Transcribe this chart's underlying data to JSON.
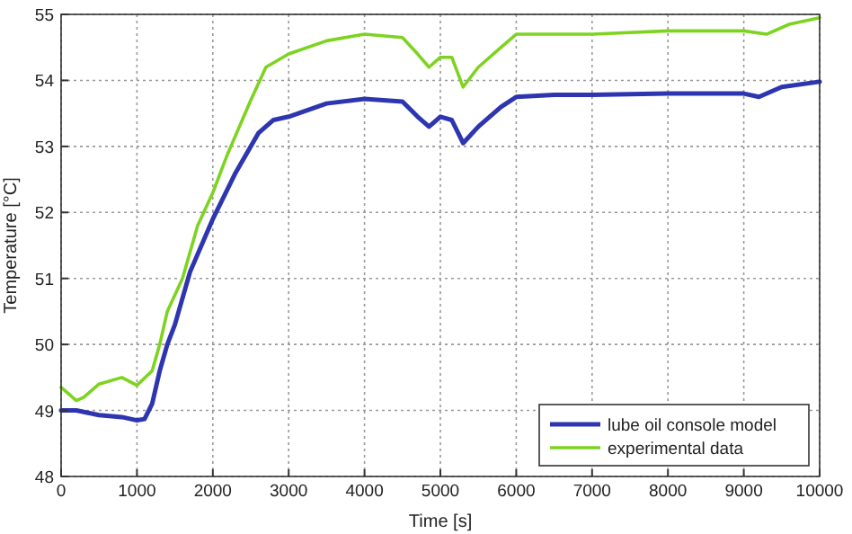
{
  "chart_data": {
    "type": "line",
    "xlabel": "Time [s]",
    "ylabel": "Temperature [°C]",
    "xlim": [
      0,
      10000
    ],
    "xticks": [
      0,
      1000,
      2000,
      3000,
      4000,
      5000,
      6000,
      7000,
      8000,
      9000,
      10000
    ],
    "ylim": [
      48,
      55
    ],
    "yticks": [
      48,
      49,
      50,
      51,
      52,
      53,
      54,
      55
    ],
    "grid": true,
    "legend": "bottom right",
    "marker": "none",
    "line_style": "solid",
    "series": [
      {
        "name": "lube oil console model",
        "color": "#2e35b0",
        "x": [
          0,
          200,
          500,
          800,
          1000,
          1100,
          1200,
          1300,
          1400,
          1500,
          1700,
          2000,
          2300,
          2600,
          2800,
          3000,
          3500,
          4000,
          4500,
          4700,
          4850,
          5000,
          5150,
          5300,
          5500,
          5800,
          6000,
          6500,
          7000,
          8000,
          9000,
          9200,
          9500,
          10000
        ],
        "values": [
          49.0,
          49.0,
          48.93,
          48.9,
          48.85,
          48.87,
          49.1,
          49.6,
          50.0,
          50.3,
          51.1,
          51.9,
          52.6,
          53.2,
          53.4,
          53.45,
          53.65,
          53.72,
          53.68,
          53.45,
          53.3,
          53.45,
          53.4,
          53.05,
          53.3,
          53.6,
          53.75,
          53.78,
          53.78,
          53.8,
          53.8,
          53.75,
          53.9,
          53.98
        ]
      },
      {
        "name": "experimental data",
        "color": "#7ed321",
        "x": [
          0,
          100,
          200,
          300,
          500,
          800,
          1000,
          1200,
          1300,
          1400,
          1600,
          1800,
          2000,
          2200,
          2500,
          2700,
          3000,
          3500,
          4000,
          4500,
          4700,
          4850,
          5000,
          5150,
          5300,
          5500,
          5800,
          6000,
          6500,
          7000,
          8000,
          9000,
          9300,
          9600,
          10000
        ],
        "values": [
          49.35,
          49.25,
          49.15,
          49.2,
          49.4,
          49.5,
          49.38,
          49.6,
          50.0,
          50.5,
          51.0,
          51.8,
          52.3,
          52.9,
          53.7,
          54.2,
          54.4,
          54.6,
          54.7,
          54.65,
          54.4,
          54.2,
          54.35,
          54.35,
          53.9,
          54.2,
          54.5,
          54.7,
          54.7,
          54.7,
          54.75,
          54.75,
          54.7,
          54.85,
          54.95
        ]
      }
    ]
  }
}
